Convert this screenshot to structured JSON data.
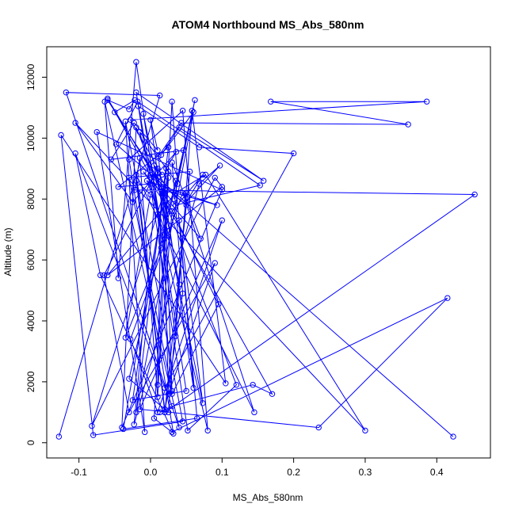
{
  "chart_data": {
    "type": "line",
    "title": "ATOM4 Northbound MS_Abs_580nm",
    "xlabel": "MS_Abs_580nm",
    "ylabel": "Altitude (m)",
    "xlim": [
      -0.145,
      0.475
    ],
    "ylim": [
      -500,
      13000
    ],
    "x_ticks": [
      -0.1,
      0.0,
      0.1,
      0.2,
      0.3,
      0.4
    ],
    "x_tick_labels": [
      "-0.1",
      "0.0",
      "0.1",
      "0.2",
      "0.3",
      "0.4"
    ],
    "y_ticks": [
      0,
      2000,
      4000,
      6000,
      8000,
      10000,
      12000
    ],
    "y_tick_labels": [
      "0",
      "2000",
      "4000",
      "6000",
      "8000",
      "10000",
      "12000"
    ],
    "grid": false,
    "legend": "none",
    "series": [
      {
        "color": "#0000ff",
        "marker": "open-circle",
        "x": [
          -0.128,
          0.013,
          -0.118,
          0.04,
          -0.064,
          -0.045,
          -0.02,
          0.035,
          0.058,
          0.105,
          -0.125,
          -0.08,
          0.045,
          -0.035,
          -0.008,
          -0.075,
          0.1,
          -0.04,
          -0.02,
          0.12,
          0.052,
          -0.017,
          0.068,
          0.2,
          0.02,
          -0.105,
          -0.07,
          0.032,
          -0.03,
          0.045,
          0.08,
          0.0,
          -0.045,
          0.025,
          -0.02,
          0.06,
          0.015,
          0.04,
          0.158,
          -0.02,
          0.01,
          0.03,
          0.095,
          0.018,
          -0.025,
          0.05,
          -0.01,
          0.073,
          0.04,
          0.065,
          -0.038,
          0.025,
          0.005,
          0.03,
          0.415,
          0.235,
          -0.015,
          0.1,
          0.01,
          -0.028,
          0.045,
          0.145,
          -0.02,
          0.02,
          0.013,
          0.03,
          0.143,
          0.17,
          -0.06,
          0.02,
          0.03,
          -0.03,
          0.055,
          0.02,
          0.453,
          -0.022,
          -0.015,
          0.01,
          0.025,
          -0.082,
          0.09,
          0.1,
          -0.06,
          0.035,
          0.077,
          0.3,
          -0.105,
          -0.025,
          0.036,
          0.022,
          0.018,
          0.025,
          0.09,
          -0.03,
          -0.065,
          0.01,
          -0.023,
          0.068,
          0.097,
          0.05,
          0.073,
          0.03,
          0.01,
          0.015,
          0.04,
          0.05,
          0.025,
          -0.03,
          0.035,
          0.06,
          0.022,
          -0.01,
          0.07,
          0.03,
          0.045,
          0.02,
          -0.02,
          0.0,
          -0.035,
          0.015,
          0.062,
          0.033,
          0.046,
          -0.055,
          -0.023,
          0.01,
          0.0,
          0.02,
          0.03,
          0.038,
          -0.015,
          0.0,
          0.035,
          0.153,
          -0.018,
          -0.048,
          0.05,
          0.024,
          0.005,
          0.016,
          -0.028,
          0.386,
          0.168,
          0.36,
          0.043,
          0.011,
          0.023,
          -0.005,
          0.093,
          0.02,
          -0.06,
          -0.03,
          -0.022,
          -0.05,
          0.01,
          0.423
        ],
        "y": [
          200,
          11400,
          11500,
          500,
          11200,
          5400,
          12500,
          3500,
          10900,
          1950,
          10100,
          250,
          700,
          10550,
          350,
          10200,
          8300,
          500,
          10350,
          1900,
          400,
          11050,
          9700,
          9500,
          1800,
          9500,
          5500,
          300,
          9300,
          10900,
          400,
          8500,
          8400,
          9700,
          1000,
          10850,
          9450,
          10350,
          8600,
          11500,
          7500,
          1600,
          4550,
          8200,
          1400,
          1700,
          10800,
          1300,
          7300,
          800,
          450,
          8900,
          800,
          350,
          4750,
          500,
          1100,
          7300,
          1000,
          3400,
          8200,
          1000,
          8800,
          1100,
          1000,
          1200,
          1900,
          1600,
          11300,
          8200,
          1700,
          8700,
          8900,
          1000,
          8150,
          8300,
          9350,
          1500,
          8700,
          550,
          8700,
          8400,
          5500,
          8200,
          8800,
          400,
          10500,
          7900,
          9550,
          9000,
          8100,
          1600,
          5900,
          1000,
          5500,
          9000,
          600,
          8500,
          9100,
          7900,
          8800,
          7600,
          1900,
          8400,
          5200,
          8200,
          1000,
          2100,
          8600,
          1800,
          7800,
          8900,
          6700,
          9200,
          4900,
          1000,
          8600,
          8150,
          3450,
          6400,
          11250,
          8000,
          9600,
          9300,
          10500,
          9600,
          10600,
          7000,
          11200,
          8500,
          10200,
          8800,
          7800,
          8450,
          11200,
          9800,
          7800,
          8300,
          9100,
          8800,
          10600,
          11200,
          11200,
          10450,
          10500,
          9400,
          6800,
          8600,
          7800,
          8300,
          11250,
          10950,
          11250,
          10850,
          8700,
          200
        ]
      }
    ]
  }
}
